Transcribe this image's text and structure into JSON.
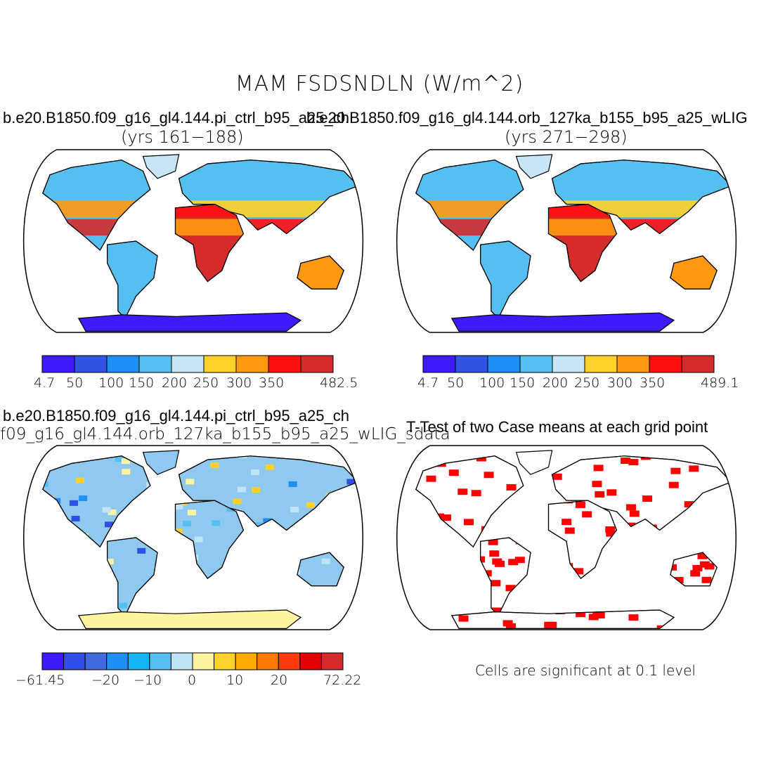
{
  "figure": {
    "title": "MAM FSDSNDLN (W/m^2)",
    "panels": [
      {
        "id": "ctrl",
        "title": "b.e20.B1850.f09_g16_gl4.144.pi_ctrl_b95_a25_ch",
        "subtitle": "(yrs 161−188)",
        "colorbar": {
          "colors": [
            "#3a1dfa",
            "#2f55e0",
            "#1e8ff5",
            "#55c0f0",
            "#c6e6f5",
            "#ffd02a",
            "#ff9a10",
            "#ff1010",
            "#d42b2b"
          ],
          "labels": [
            "4.7",
            "50",
            "100",
            "150",
            "200",
            "250",
            "300",
            "350",
            "482.5"
          ]
        }
      },
      {
        "id": "orb",
        "title": "b.e20.B1850.f09_g16_gl4.144.orb_127ka_b155_b95_a25_wLIG",
        "subtitle": "(yrs 271−298)",
        "colorbar": {
          "colors": [
            "#3a1dfa",
            "#2f55e0",
            "#1e8ff5",
            "#55c0f0",
            "#c6e6f5",
            "#ffd02a",
            "#ff9a10",
            "#ff1010",
            "#d42b2b"
          ],
          "labels": [
            "4.7",
            "50",
            "100",
            "150",
            "200",
            "250",
            "300",
            "350",
            "489.1"
          ]
        }
      },
      {
        "id": "diff",
        "title": "b.e20.B1850.f09_g16_gl4.144.pi_ctrl_b95_a25_ch",
        "subtitle": "f09_g16_gl4.144.orb_127ka_b155_b95_a25_wLIG_sdata",
        "colorbar": {
          "colors": [
            "#3a1dfa",
            "#2f4fe8",
            "#3f6ae0",
            "#1e8ff5",
            "#14b4f5",
            "#55c0f0",
            "#bfe4f5",
            "#fff5a0",
            "#ffd02a",
            "#ffaa00",
            "#ff7a00",
            "#ff3c10",
            "#e00000",
            "#d42b2b"
          ],
          "labels": [
            "−61.45",
            "−20",
            "−10",
            "0",
            "10",
            "20",
            "72.22"
          ]
        }
      },
      {
        "id": "ttest",
        "title": "T-Test of two Case means at each grid point",
        "footer": "Cells are significant at 0.1 level"
      }
    ]
  }
}
